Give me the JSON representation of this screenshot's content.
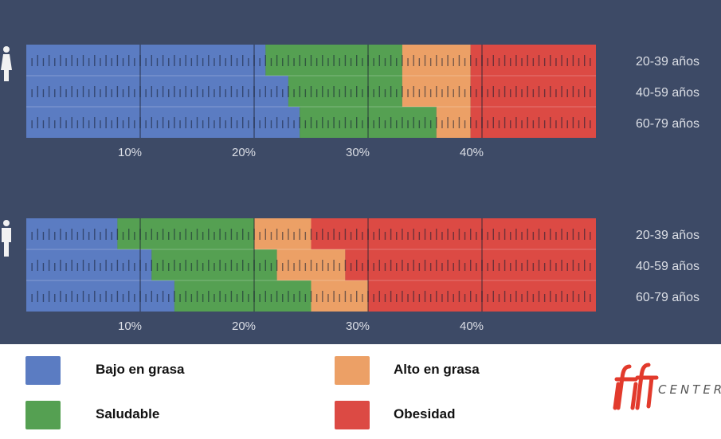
{
  "colors": {
    "background": "#3d4a66",
    "bajo": "#5b7cc2",
    "saludable": "#55a052",
    "alto": "#eca066",
    "obesidad": "#dc4a44",
    "text": "#dcdfe6",
    "logo": "#e23a2c"
  },
  "legend": [
    {
      "key": "bajo",
      "label": "Bajo en grasa"
    },
    {
      "key": "alto",
      "label": "Alto en grasa"
    },
    {
      "key": "saludable",
      "label": "Saludable"
    },
    {
      "key": "obesidad",
      "label": "Obesidad"
    }
  ],
  "logo": {
    "text": "CENTER",
    "icon": "ifit-logo-icon"
  },
  "chart_data": [
    {
      "type": "bar",
      "orientation": "horizontal-stacked",
      "group_icon": "female-icon",
      "categories": [
        "20-39 años",
        "40-59 años",
        "60-79 años"
      ],
      "xlim": [
        0,
        50
      ],
      "xticks": [
        10,
        20,
        30,
        40
      ],
      "xtick_labels": [
        "10%",
        "20%",
        "30%",
        "40%"
      ],
      "series": [
        {
          "name": "Bajo en grasa",
          "key": "bajo",
          "values": [
            21,
            23,
            24
          ]
        },
        {
          "name": "Saludable",
          "key": "saludable",
          "values": [
            12,
            10,
            12
          ]
        },
        {
          "name": "Alto en grasa",
          "key": "alto",
          "values": [
            6,
            6,
            3
          ]
        },
        {
          "name": "Obesidad",
          "key": "obesidad",
          "values": [
            11,
            11,
            11
          ]
        }
      ]
    },
    {
      "type": "bar",
      "orientation": "horizontal-stacked",
      "group_icon": "male-icon",
      "categories": [
        "20-39 años",
        "40-59 años",
        "60-79 años"
      ],
      "xlim": [
        0,
        50
      ],
      "xticks": [
        10,
        20,
        30,
        40
      ],
      "xtick_labels": [
        "10%",
        "20%",
        "30%",
        "40%"
      ],
      "series": [
        {
          "name": "Bajo en grasa",
          "key": "bajo",
          "values": [
            8,
            11,
            13
          ]
        },
        {
          "name": "Saludable",
          "key": "saludable",
          "values": [
            12,
            11,
            12
          ]
        },
        {
          "name": "Alto en grasa",
          "key": "alto",
          "values": [
            5,
            6,
            5
          ]
        },
        {
          "name": "Obesidad",
          "key": "obesidad",
          "values": [
            25,
            22,
            20
          ]
        }
      ]
    }
  ]
}
